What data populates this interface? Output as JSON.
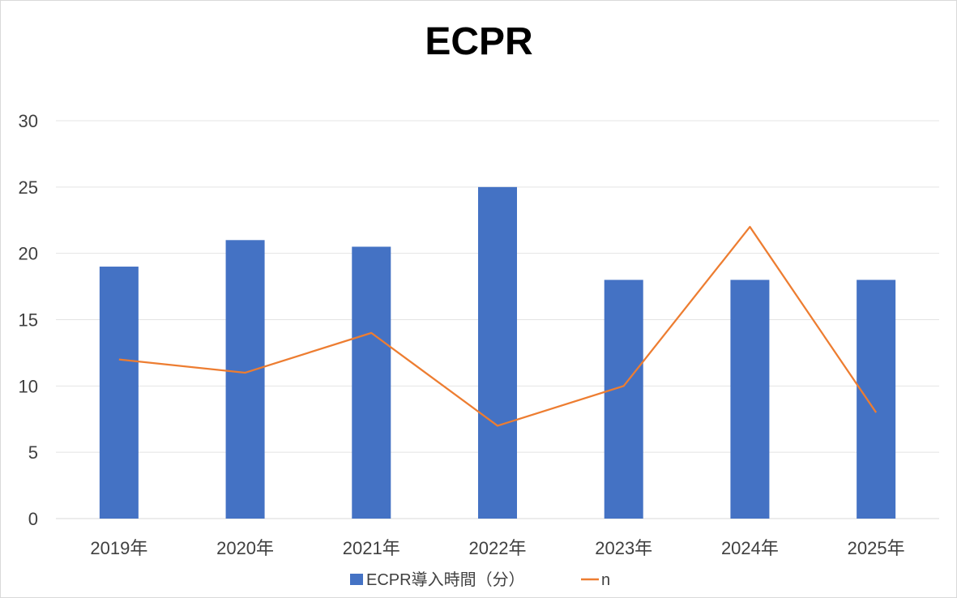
{
  "chart_data": {
    "type": "bar",
    "title": "ECPR",
    "categories": [
      "2019年",
      "2020年",
      "2021年",
      "2022年",
      "2023年",
      "2024年",
      "2025年"
    ],
    "series": [
      {
        "name": "ECPR導入時間（分）",
        "type": "bar",
        "color": "#4472C4",
        "values": [
          19,
          21,
          20.5,
          25,
          18,
          18,
          18
        ]
      },
      {
        "name": "n",
        "type": "line",
        "color": "#ED7D31",
        "values": [
          12,
          11,
          14,
          7,
          10,
          22,
          8
        ]
      }
    ],
    "ylim": [
      0,
      30
    ],
    "yticks": [
      0,
      5,
      10,
      15,
      20,
      25,
      30
    ],
    "xlabel": "",
    "ylabel": "",
    "grid": true,
    "legend": "bottom"
  }
}
